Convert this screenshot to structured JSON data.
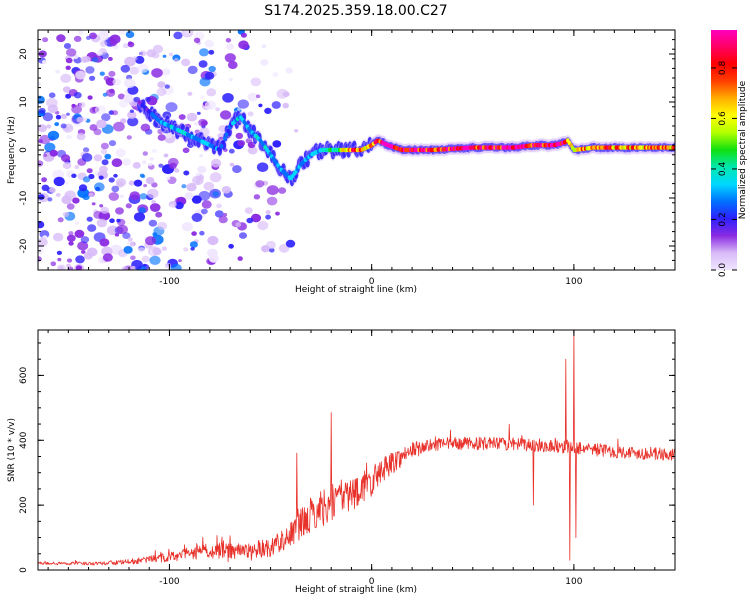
{
  "title": "S174.2025.359.18.00.C27",
  "chart_data": [
    {
      "type": "heatmap",
      "title": "S174.2025.359.18.00.C27",
      "xlabel": "Height of straight line (km)",
      "ylabel": "Frequency (Hz)",
      "xlim": [
        -165,
        150
      ],
      "ylim": [
        -25,
        25
      ],
      "x_ticks": [
        -100,
        0,
        100
      ],
      "x_tick_labels": [
        "-100",
        "0",
        "100"
      ],
      "y_ticks": [
        -20,
        -10,
        0,
        10,
        20
      ],
      "y_tick_labels": [
        "-20",
        "-10",
        "0",
        "10",
        "20"
      ],
      "colorbar": {
        "label": "Normalized spectral amplitude",
        "range": [
          0,
          0.95
        ],
        "ticks": [
          0,
          0.2,
          0.4,
          0.6,
          0.8
        ],
        "tick_labels": [
          "0.0",
          "0.2",
          "0.4",
          "0.6",
          "0.8"
        ],
        "colormap": [
          "#f0e6ff",
          "#d8bbf8",
          "#8a2be2",
          "#2d20ff",
          "#0070ff",
          "#00d8ff",
          "#00e8b0",
          "#10e010",
          "#b0ff00",
          "#ffff00",
          "#ffb000",
          "#ff4000",
          "#ff0000",
          "#ff0060",
          "#ff00c0"
        ]
      },
      "ridge": {
        "description": "spectral ridge frequency (Hz) versus height (km)",
        "x": [
          -115,
          -105,
          -95,
          -85,
          -75,
          -70,
          -65,
          -60,
          -55,
          -50,
          -45,
          -40,
          -35,
          -30,
          -25,
          -20,
          -15,
          -10,
          -5,
          0,
          3,
          8,
          15,
          30,
          50,
          70,
          80,
          90,
          95,
          97,
          100,
          110,
          130,
          150
        ],
        "y": [
          10,
          6,
          4,
          2,
          0,
          5,
          7,
          4,
          2,
          -1,
          -4,
          -6,
          -3,
          -1,
          0,
          0,
          0,
          0,
          0,
          1,
          2,
          1,
          0,
          0,
          0.5,
          0.5,
          1,
          1,
          1.5,
          2,
          0,
          0.5,
          0.5,
          0.5
        ],
        "amplitude": [
          0.15,
          0.3,
          0.35,
          0.3,
          0.25,
          0.3,
          0.35,
          0.3,
          0.35,
          0.3,
          0.3,
          0.35,
          0.3,
          0.3,
          0.35,
          0.4,
          0.55,
          0.75,
          0.8,
          0.7,
          0.8,
          0.9,
          0.9,
          0.85,
          0.9,
          0.85,
          0.9,
          0.9,
          0.85,
          0.75,
          0.6,
          0.75,
          0.7,
          0.7
        ]
      },
      "noise_region": {
        "description": "scattered low-amplitude speckle across the full frequency range",
        "x_range": [
          -165,
          -30
        ],
        "amplitude": 0.12
      }
    },
    {
      "type": "line",
      "xlabel": "Height of straight line (km)",
      "ylabel": "SNR (10 * v/v)",
      "xlim": [
        -165,
        150
      ],
      "ylim": [
        0,
        740
      ],
      "x_ticks": [
        -100,
        0,
        100
      ],
      "x_tick_labels": [
        "-100",
        "0",
        "100"
      ],
      "y_ticks": [
        0,
        200,
        400,
        600
      ],
      "y_tick_labels": [
        "0",
        "200",
        "400",
        "600"
      ],
      "color": "#e8312a",
      "series": [
        {
          "name": "SNR",
          "description": "smoothed SNR trend; trace adds high-frequency fluctuation",
          "x": [
            -165,
            -140,
            -120,
            -100,
            -80,
            -60,
            -50,
            -40,
            -30,
            -20,
            -10,
            0,
            5,
            10,
            20,
            30,
            40,
            60,
            80,
            100,
            120,
            150
          ],
          "y": [
            20,
            20,
            25,
            40,
            60,
            60,
            70,
            110,
            170,
            210,
            235,
            270,
            310,
            330,
            370,
            385,
            390,
            390,
            385,
            380,
            365,
            355
          ],
          "noise_amplitude": [
            5,
            5,
            8,
            15,
            25,
            25,
            30,
            40,
            55,
            60,
            55,
            45,
            40,
            35,
            25,
            20,
            20,
            20,
            20,
            22,
            20,
            20
          ]
        }
      ],
      "spikes": [
        {
          "x": -20,
          "y": 485
        },
        {
          "x": -37,
          "y": 360
        },
        {
          "x": 68,
          "y": 450
        },
        {
          "x": 80,
          "y": 200
        },
        {
          "x": 96,
          "y": 650
        },
        {
          "x": 98,
          "y": 30
        },
        {
          "x": 100,
          "y": 740
        },
        {
          "x": 101,
          "y": 100
        }
      ]
    }
  ]
}
